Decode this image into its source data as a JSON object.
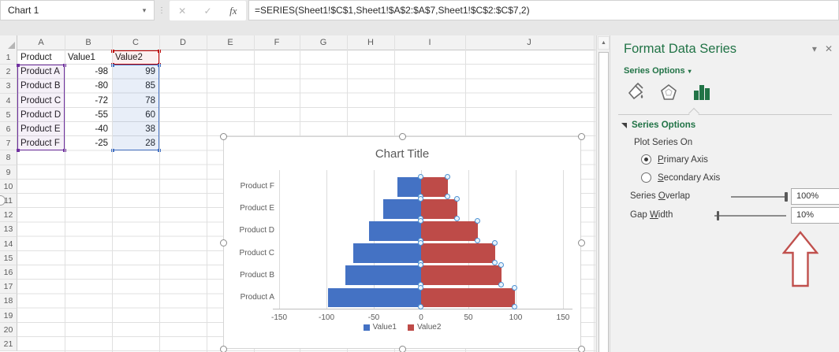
{
  "formula_bar": {
    "name_box": "Chart 1",
    "dropdown_icon": "▾",
    "cancel": "✕",
    "enter": "✓",
    "fx": "fx",
    "formula": "=SERIES(Sheet1!$C$1,Sheet1!$A$2:$A$7,Sheet1!$C$2:$C$7,2)"
  },
  "grid": {
    "columns": [
      "A",
      "B",
      "C",
      "D",
      "E",
      "F",
      "G",
      "H",
      "I",
      "J"
    ],
    "rows": [
      "1",
      "2",
      "3",
      "4",
      "5",
      "6",
      "7",
      "8",
      "9",
      "10",
      "11",
      "12",
      "13",
      "14",
      "15",
      "16",
      "17",
      "18",
      "19",
      "20",
      "21"
    ],
    "header_row": [
      "Product",
      "Value1",
      "Value2"
    ],
    "data_rows": [
      [
        "Product A",
        "-98",
        "99"
      ],
      [
        "Product B",
        "-80",
        "85"
      ],
      [
        "Product C",
        "-72",
        "78"
      ],
      [
        "Product D",
        "-55",
        "60"
      ],
      [
        "Product E",
        "-40",
        "38"
      ],
      [
        "Product F",
        "-25",
        "28"
      ]
    ],
    "selection_colors": {
      "category_range": "#7030a0",
      "name_range": "#c00000",
      "value_range": "#4472c4"
    }
  },
  "chart_data": {
    "type": "bar",
    "orientation": "horizontal",
    "title": "Chart Title",
    "categories": [
      "Product A",
      "Product B",
      "Product C",
      "Product D",
      "Product E",
      "Product F"
    ],
    "series": [
      {
        "name": "Value1",
        "color": "#4472c4",
        "values": [
          -98,
          -80,
          -72,
          -55,
          -40,
          -25
        ]
      },
      {
        "name": "Value2",
        "color": "#be4b48",
        "values": [
          99,
          85,
          78,
          60,
          38,
          28
        ]
      }
    ],
    "xticks": [
      "-150",
      "-100",
      "-50",
      "0",
      "50",
      "100",
      "150"
    ],
    "xtick_values": [
      -150,
      -100,
      -50,
      0,
      50,
      100,
      150
    ],
    "legend_position": "bottom",
    "grid": true,
    "selected_series": "Value2"
  },
  "panel": {
    "title": "Format Data Series",
    "collapse_icon": "▾",
    "close_icon": "✕",
    "section_dropdown_label": "Series Options",
    "section_dropdown_caret": "▾",
    "icons": [
      "paint-bucket-icon",
      "pentagon-icon",
      "bar-chart-icon"
    ],
    "selected_icon": "bar-chart-icon",
    "section_header": "Series Options",
    "plot_series_on": "Plot Series On",
    "radio_primary": {
      "label": "Primary Axis",
      "underline_index": 0,
      "selected": true
    },
    "radio_secondary": {
      "label": "Secondary Axis",
      "underline_index": 0,
      "selected": false
    },
    "series_overlap": {
      "label": "Series Overlap",
      "underline_index": 7,
      "value": "100%",
      "slider_percent": 100
    },
    "gap_width": {
      "label": "Gap Width",
      "underline_index": 4,
      "value": "10%",
      "slider_percent": 5
    },
    "spin_up_icon": "▲",
    "spin_down_icon": "▼",
    "scroll_up_icon": "▲",
    "annotation_arrow_color": "#c0504d",
    "accent_green": "#217346"
  }
}
